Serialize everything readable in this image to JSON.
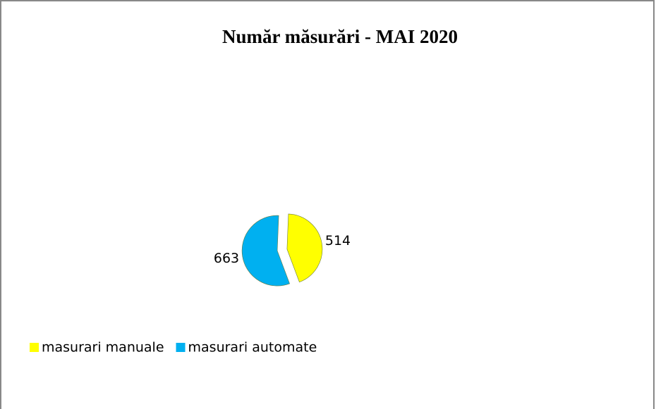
{
  "chart_data": {
    "type": "pie",
    "title": "Număr măsurări - MAI 2020",
    "categories": [
      "masurari manuale",
      "masurari automate"
    ],
    "values": [
      514,
      663
    ],
    "colors": [
      "#ffff00",
      "#00b0f0"
    ],
    "legend": "bottom-left"
  }
}
